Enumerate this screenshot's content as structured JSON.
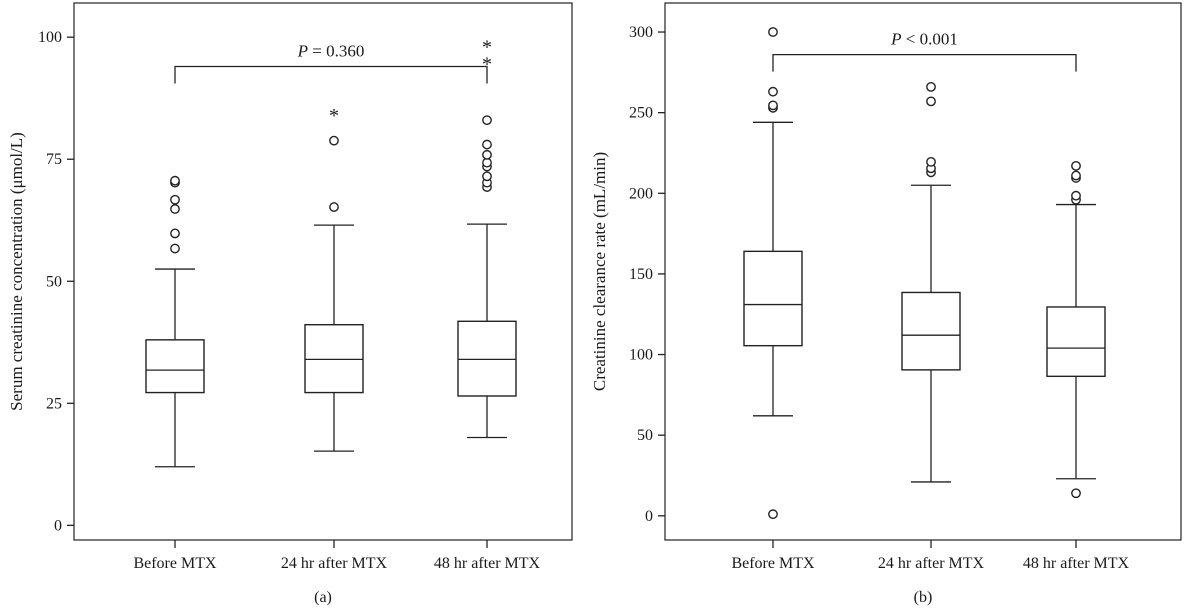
{
  "chart_data": [
    {
      "type": "box",
      "caption": "(a)",
      "ylabel": "Serum creatinine concentration (μmol/L)",
      "ylim": [
        -3,
        107
      ],
      "yticks": [
        0,
        25,
        50,
        75,
        100
      ],
      "categories": [
        "Before MTX",
        "24 hr after MTX",
        "48 hr after MTX"
      ],
      "boxes": [
        {
          "whisker_low": 12,
          "q1": 27.2,
          "median": 31.8,
          "q3": 38,
          "whisker_high": 52.5,
          "outliers": [
            56.7,
            59.8,
            64.8,
            66.7,
            70.2,
            70.6
          ],
          "extremes": []
        },
        {
          "whisker_low": 15.2,
          "q1": 27.2,
          "median": 34,
          "q3": 41.1,
          "whisker_high": 61.5,
          "outliers": [
            65.2,
            78.8
          ],
          "extremes": [
            84.5
          ]
        },
        {
          "whisker_low": 18,
          "q1": 26.5,
          "median": 34,
          "q3": 41.8,
          "whisker_high": 61.7,
          "outliers": [
            69.3,
            70.2,
            71.5,
            73.5,
            74.3,
            75.9,
            78,
            83
          ],
          "extremes": [
            95,
            98.5
          ]
        }
      ],
      "bracket": {
        "from": 0,
        "to": 2,
        "value": 94,
        "p_symbol": "P",
        "p_text": " = 0.360"
      }
    },
    {
      "type": "box",
      "caption": "(b)",
      "ylabel": "Creatinine clearance rate (mL/min)",
      "ylim": [
        -15,
        318
      ],
      "yticks": [
        0,
        50,
        100,
        150,
        200,
        250,
        300
      ],
      "categories": [
        "Before MTX",
        "24 hr after MTX",
        "48 hr after MTX"
      ],
      "boxes": [
        {
          "whisker_low": 62,
          "q1": 105.5,
          "median": 131,
          "q3": 164,
          "whisker_high": 244,
          "outliers": [
            1,
            253,
            254.5,
            263,
            300
          ],
          "extremes": []
        },
        {
          "whisker_low": 21,
          "q1": 90.5,
          "median": 112,
          "q3": 138.5,
          "whisker_high": 205,
          "outliers": [
            213,
            215.5,
            219.5,
            257,
            266
          ],
          "extremes": []
        },
        {
          "whisker_low": 23,
          "q1": 86.5,
          "median": 104,
          "q3": 129.5,
          "whisker_high": 193,
          "outliers": [
            14,
            196,
            198.5,
            209.5,
            211,
            217
          ],
          "extremes": []
        }
      ],
      "bracket": {
        "from": 0,
        "to": 2,
        "value": 286,
        "p_symbol": "P",
        "p_text": " < 0.001"
      }
    }
  ]
}
